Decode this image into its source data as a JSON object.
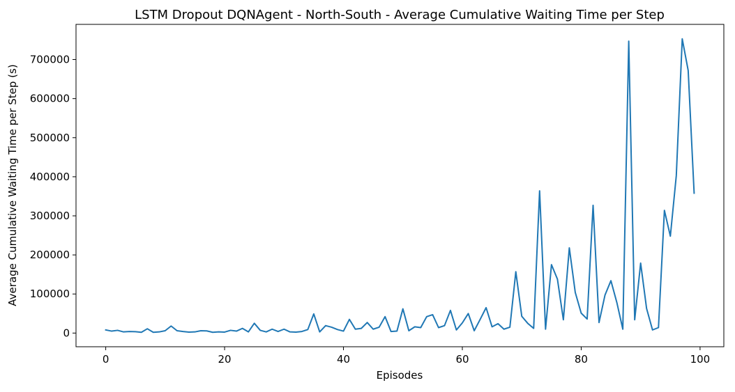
{
  "chart_data": {
    "type": "line",
    "title": "LSTM Dropout DQNAgent - North-South - Average Cumulative Waiting Time per Step",
    "xlabel": "Episodes",
    "ylabel": "Average Cumulative Waiting Time per Step (s)",
    "xlim": [
      -5,
      104
    ],
    "ylim": [
      -35000,
      790000
    ],
    "xticks": [
      0,
      20,
      40,
      60,
      80,
      100
    ],
    "xtick_labels": [
      "0",
      "20",
      "40",
      "60",
      "80",
      "100"
    ],
    "yticks": [
      0,
      100000,
      200000,
      300000,
      400000,
      500000,
      600000,
      700000
    ],
    "ytick_labels": [
      "0",
      "100000",
      "200000",
      "300000",
      "400000",
      "500000",
      "600000",
      "700000"
    ],
    "grid": false,
    "series": [
      {
        "color": "#1f77b4",
        "x": [
          0,
          1,
          2,
          3,
          4,
          5,
          6,
          7,
          8,
          9,
          10,
          11,
          12,
          13,
          14,
          15,
          16,
          17,
          18,
          19,
          20,
          21,
          22,
          23,
          24,
          25,
          26,
          27,
          28,
          29,
          30,
          31,
          32,
          33,
          34,
          35,
          36,
          37,
          38,
          39,
          40,
          41,
          42,
          43,
          44,
          45,
          46,
          47,
          48,
          49,
          50,
          51,
          52,
          53,
          54,
          55,
          56,
          57,
          58,
          59,
          60,
          61,
          62,
          63,
          64,
          65,
          66,
          67,
          68,
          69,
          70,
          71,
          72,
          73,
          74,
          75,
          76,
          77,
          78,
          79,
          80,
          81,
          82,
          83,
          84,
          85,
          86,
          87,
          88,
          89,
          90,
          91,
          92,
          93,
          94,
          95,
          96,
          97,
          98,
          99
        ],
        "values": [
          8000,
          5000,
          7000,
          3000,
          4000,
          3500,
          2000,
          11000,
          2000,
          3000,
          6000,
          18000,
          6000,
          4000,
          2500,
          3000,
          6000,
          5500,
          2000,
          3000,
          2500,
          7000,
          5000,
          12000,
          3000,
          25000,
          7000,
          3000,
          10000,
          4000,
          10000,
          3000,
          2500,
          4000,
          9000,
          49000,
          3000,
          19000,
          15000,
          9000,
          5000,
          35000,
          10000,
          12000,
          27000,
          10000,
          15000,
          42000,
          4000,
          5000,
          62000,
          6000,
          16000,
          14000,
          42000,
          47000,
          14000,
          19000,
          58000,
          8000,
          26000,
          50000,
          6000,
          35000,
          65000,
          16000,
          24000,
          10000,
          15000,
          157000,
          43000,
          25000,
          12000,
          364000,
          10000,
          175000,
          138000,
          34000,
          218000,
          104000,
          51000,
          36000,
          327000,
          27000,
          97000,
          134000,
          78000,
          10000,
          747000,
          34000,
          179000,
          63000,
          8000,
          14000,
          314000,
          248000,
          403000,
          753000,
          672000,
          358000
        ]
      }
    ]
  }
}
